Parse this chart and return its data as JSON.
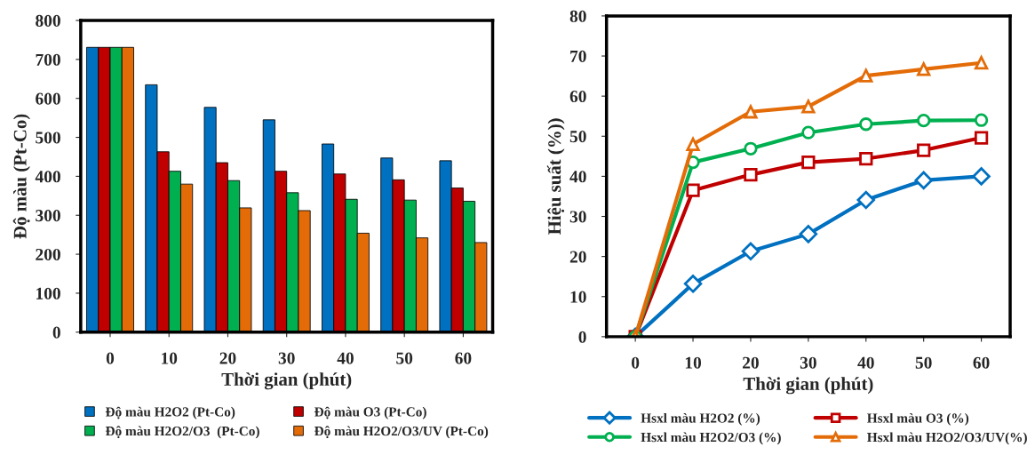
{
  "chart_data": [
    {
      "type": "bar",
      "xlabel": "Thời gian (phút)",
      "ylabel": "Độ màu (Pt-Co)",
      "categories": [
        "0",
        "10",
        "20",
        "30",
        "40",
        "50",
        "60"
      ],
      "ylim": [
        0,
        800
      ],
      "yticks": [
        0,
        100,
        200,
        300,
        400,
        500,
        600,
        700,
        800
      ],
      "grid": false,
      "legend": "bottom",
      "series": [
        {
          "name": "Độ màu H2O2 (Pt-Co)",
          "color": "#0070c0",
          "values": [
            731,
            635,
            577,
            545,
            483,
            447,
            440
          ]
        },
        {
          "name": "Độ màu O3 (Pt-Co)",
          "color": "#c00000",
          "values": [
            731,
            463,
            435,
            413,
            406,
            391,
            370
          ]
        },
        {
          "name": "Độ màu H2O2/O3  (Pt-Co)",
          "color": "#00b050",
          "values": [
            731,
            413,
            389,
            358,
            341,
            339,
            336
          ]
        },
        {
          "name": "Độ màu H2O2/O3/UV (Pt-Co)",
          "color": "#e36c09",
          "values": [
            731,
            380,
            319,
            312,
            254,
            242,
            230
          ]
        }
      ]
    },
    {
      "type": "line",
      "xlabel": "Thời gian (phút)",
      "ylabel": "Hiệu suất (%))",
      "categories": [
        "0",
        "10",
        "20",
        "30",
        "40",
        "50",
        "60"
      ],
      "ylim": [
        0,
        80
      ],
      "yticks": [
        0,
        10,
        20,
        30,
        40,
        50,
        60,
        70,
        80
      ],
      "grid": false,
      "legend": "bottom",
      "line_style": "solid",
      "series": [
        {
          "name": "Hsxl màu H2O2 (%)",
          "color": "#0070c0",
          "marker": "diamond",
          "values": [
            0,
            13.2,
            21.3,
            25.6,
            34.1,
            39,
            40
          ]
        },
        {
          "name": "Hsxl màu O3 (%)",
          "color": "#c00000",
          "marker": "square",
          "values": [
            0,
            36.5,
            40.4,
            43.5,
            44.4,
            46.5,
            49.6
          ]
        },
        {
          "name": "Hsxl màu H2O2/O3 (%)",
          "color": "#00b050",
          "marker": "circle",
          "values": [
            0,
            43.5,
            46.9,
            50.9,
            53,
            53.9,
            54
          ]
        },
        {
          "name": "Hsxl màu H2O2/O3/UV(%)",
          "color": "#e36c09",
          "marker": "triangle",
          "values": [
            0,
            48,
            56.1,
            57.4,
            65.1,
            66.7,
            68.3
          ]
        }
      ]
    }
  ]
}
